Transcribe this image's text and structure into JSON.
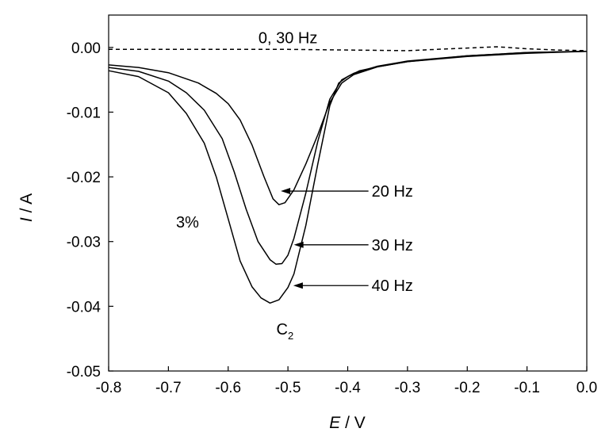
{
  "chart_data": {
    "type": "line",
    "xlabel_italic": "E",
    "xlabel_unit": " / V",
    "ylabel_italic": "I",
    "ylabel_unit": " / A",
    "xlim": [
      -0.8,
      0.0
    ],
    "ylim": [
      -0.05,
      0.005
    ],
    "x_ticks": [
      -0.8,
      -0.7,
      -0.6,
      -0.5,
      -0.4,
      -0.3,
      -0.2,
      -0.1,
      0.0
    ],
    "x_tick_labels": [
      "-0.8",
      "-0.7",
      "-0.6",
      "-0.5",
      "-0.4",
      "-0.3",
      "-0.2",
      "-0.1",
      "0.0"
    ],
    "y_ticks": [
      0.0,
      -0.01,
      -0.02,
      -0.03,
      -0.04,
      -0.05
    ],
    "y_tick_labels": [
      "0.00",
      "-0.01",
      "-0.02",
      "-0.03",
      "-0.04",
      "-0.05"
    ],
    "grid": false,
    "series": [
      {
        "name": "0, 30 Hz",
        "style": "dashed",
        "x": [
          -0.8,
          -0.7,
          -0.6,
          -0.5,
          -0.4,
          -0.3,
          -0.2,
          -0.15,
          -0.1,
          -0.05,
          0.0
        ],
        "y": [
          -0.0003,
          -0.0003,
          -0.0003,
          -0.0003,
          -0.0004,
          -0.0005,
          -0.0001,
          0.0001,
          -0.0002,
          -0.0004,
          -0.0005
        ]
      },
      {
        "name": "20 Hz",
        "style": "solid",
        "x": [
          -0.8,
          -0.75,
          -0.7,
          -0.65,
          -0.62,
          -0.6,
          -0.58,
          -0.56,
          -0.54,
          -0.525,
          -0.515,
          -0.505,
          -0.49,
          -0.47,
          -0.45,
          -0.43,
          -0.41,
          -0.39,
          -0.35,
          -0.3,
          -0.2,
          -0.1,
          0.0
        ],
        "y": [
          -0.0027,
          -0.0031,
          -0.0039,
          -0.0055,
          -0.0071,
          -0.0087,
          -0.0112,
          -0.0151,
          -0.02,
          -0.0234,
          -0.0243,
          -0.024,
          -0.022,
          -0.018,
          -0.0135,
          -0.0085,
          -0.0055,
          -0.0042,
          -0.003,
          -0.0022,
          -0.0014,
          -0.0009,
          -0.0006
        ]
      },
      {
        "name": "30 Hz",
        "style": "solid",
        "x": [
          -0.8,
          -0.75,
          -0.7,
          -0.67,
          -0.64,
          -0.61,
          -0.59,
          -0.57,
          -0.55,
          -0.53,
          -0.52,
          -0.51,
          -0.5,
          -0.49,
          -0.47,
          -0.45,
          -0.43,
          -0.41,
          -0.39,
          -0.35,
          -0.3,
          -0.2,
          -0.1,
          0.0
        ],
        "y": [
          -0.0031,
          -0.0037,
          -0.0052,
          -0.007,
          -0.0097,
          -0.0141,
          -0.0192,
          -0.025,
          -0.03,
          -0.0328,
          -0.0335,
          -0.0334,
          -0.0321,
          -0.0295,
          -0.0225,
          -0.0145,
          -0.008,
          -0.005,
          -0.004,
          -0.0029,
          -0.0021,
          -0.0013,
          -0.0008,
          -0.0006
        ]
      },
      {
        "name": "40 Hz",
        "style": "solid",
        "x": [
          -0.8,
          -0.75,
          -0.7,
          -0.67,
          -0.64,
          -0.62,
          -0.6,
          -0.58,
          -0.56,
          -0.545,
          -0.53,
          -0.515,
          -0.5,
          -0.49,
          -0.47,
          -0.45,
          -0.43,
          -0.415,
          -0.4,
          -0.38,
          -0.35,
          -0.3,
          -0.2,
          -0.1,
          0.0
        ],
        "y": [
          -0.0036,
          -0.0045,
          -0.007,
          -0.0102,
          -0.0148,
          -0.02,
          -0.0265,
          -0.033,
          -0.037,
          -0.0387,
          -0.0395,
          -0.039,
          -0.0371,
          -0.035,
          -0.0275,
          -0.018,
          -0.009,
          -0.0055,
          -0.0045,
          -0.0036,
          -0.003,
          -0.0022,
          -0.0013,
          -0.0008,
          -0.0006
        ]
      }
    ],
    "annotations": [
      {
        "text": "0, 30 Hz",
        "x": -0.5,
        "y": 0.0015
      },
      {
        "text": "20 Hz",
        "x": -0.36,
        "y": -0.0222,
        "arrow_to_x": -0.512,
        "arrow_to_y": -0.0222
      },
      {
        "text": "30 Hz",
        "x": -0.36,
        "y": -0.0305,
        "arrow_to_x": -0.49,
        "arrow_to_y": -0.0305
      },
      {
        "text": "40 Hz",
        "x": -0.36,
        "y": -0.0368,
        "arrow_to_x": -0.491,
        "arrow_to_y": -0.0368
      },
      {
        "text": "3%",
        "x": -0.668,
        "y": -0.027
      },
      {
        "text": "C",
        "sub": "2",
        "x": -0.505,
        "y": -0.0435
      }
    ]
  }
}
